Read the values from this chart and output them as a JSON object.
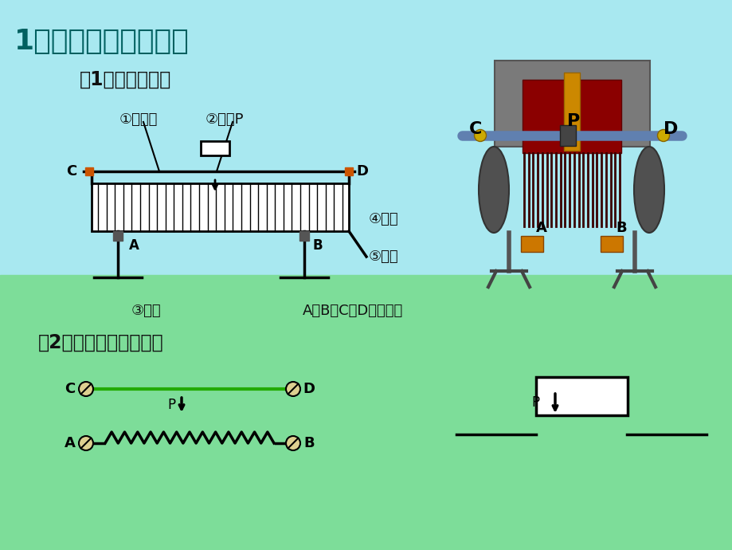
{
  "bg_top": "#a8e8f0",
  "bg_bottom": "#7ddd99",
  "title": "1、滑动变阻器的构造",
  "title_color": "#006060",
  "subtitle1": "（1）实物及名称",
  "subtitle2": "（2）结构示意图和符号",
  "label1": "①金属棒",
  "label2": "②滑片P",
  "label3": "③线圈",
  "label4": "④瓷筒",
  "label5": "⑤支架",
  "label_abcd": "A、B、C、D为接线柱"
}
